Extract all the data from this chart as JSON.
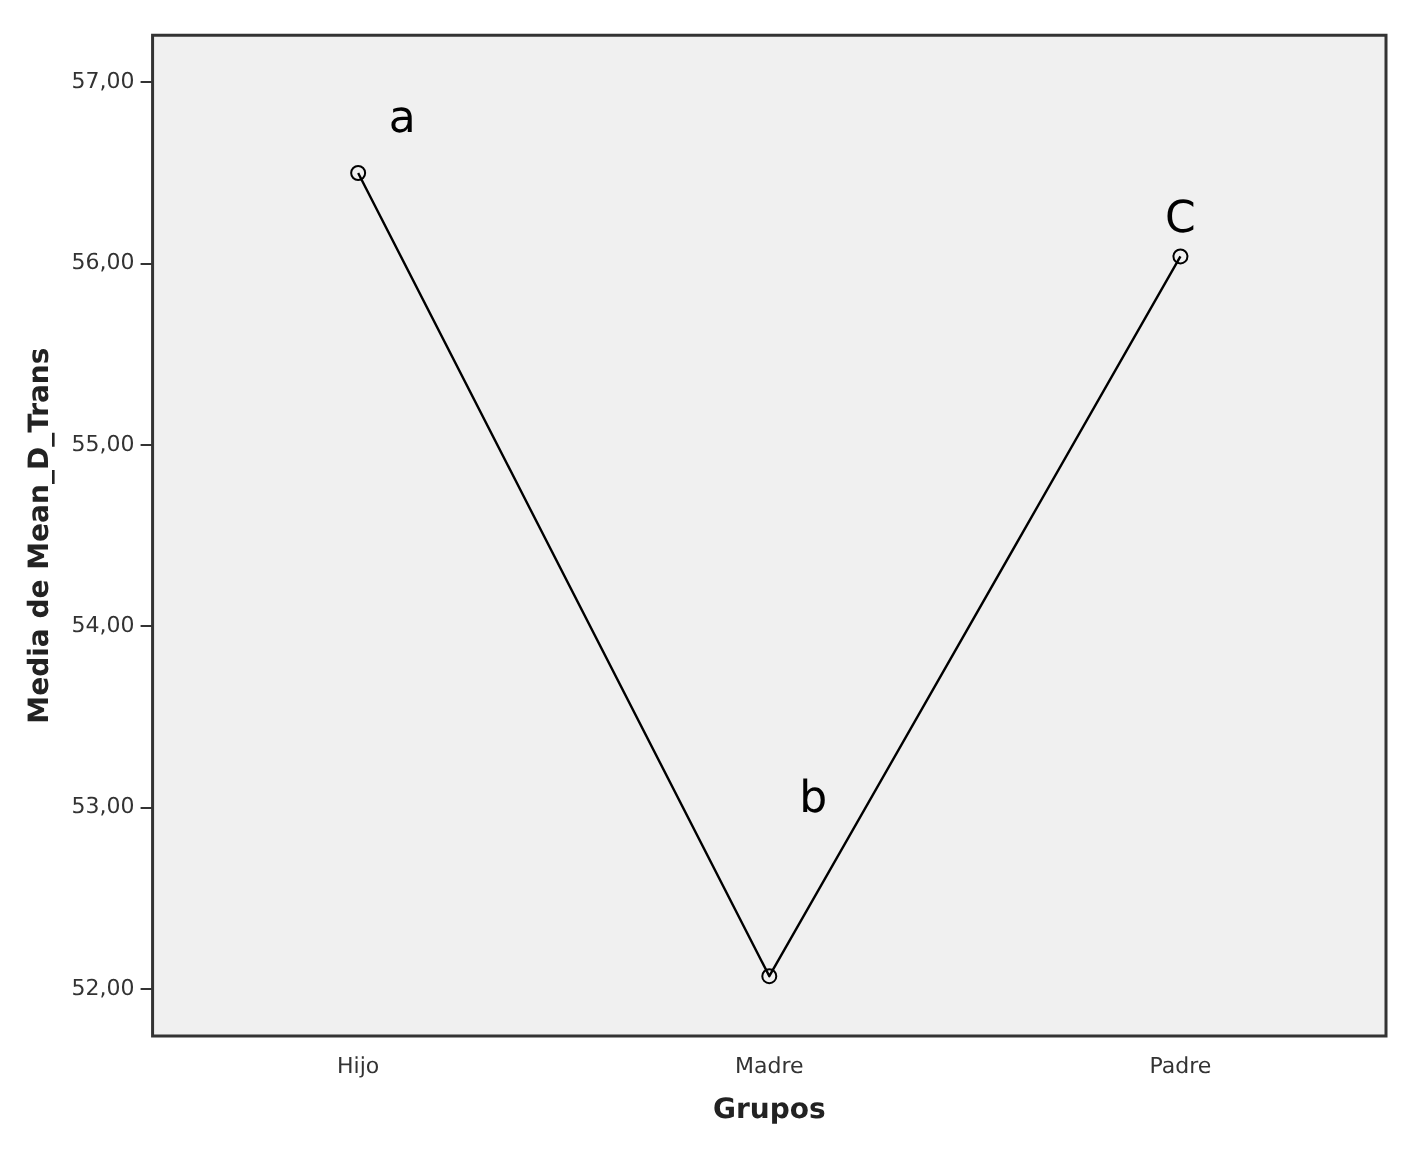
{
  "chart_data": {
    "type": "line",
    "xlabel": "Grupos",
    "ylabel": "Media de Mean_D_Trans",
    "categories": [
      "Hijo",
      "Madre",
      "Padre"
    ],
    "series": [
      {
        "color": "#000000",
        "values": [
          56.5,
          52.07,
          56.04
        ]
      }
    ],
    "ylim": [
      51.74,
      57.26
    ],
    "yticks": [
      {
        "value": 52,
        "label": "52,00"
      },
      {
        "value": 53,
        "label": "53,00"
      },
      {
        "value": 54,
        "label": "54,00"
      },
      {
        "value": 55,
        "label": "55,00"
      },
      {
        "value": 56,
        "label": "56,00"
      },
      {
        "value": 57,
        "label": "57,00"
      }
    ],
    "grid": false,
    "legend": false,
    "marker": "circle",
    "line_style": "solid",
    "annotations": [
      "a",
      "b",
      "C"
    ]
  }
}
